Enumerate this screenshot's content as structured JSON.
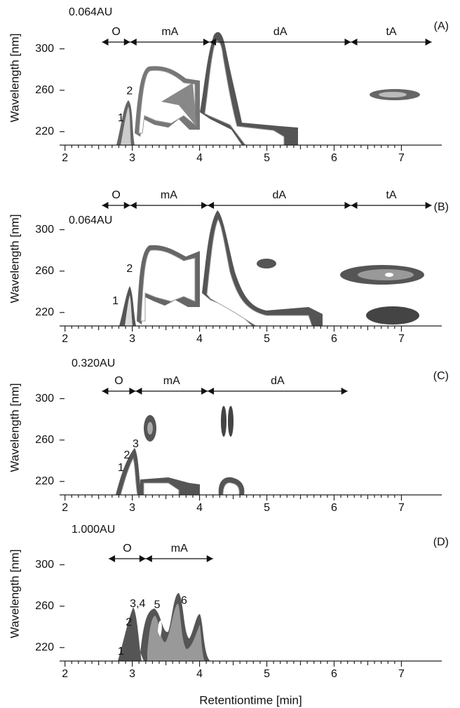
{
  "chart_data": [
    {
      "type": "contour",
      "panel_label": "(A)",
      "annotation": "0.064AU",
      "y_label": "Wavelength [nm]",
      "xlim": [
        1.92,
        7.6
      ],
      "xticks": [
        2,
        3,
        4,
        5,
        6,
        7
      ],
      "ylim": [
        207,
        337
      ],
      "yticks": [
        220,
        260,
        300
      ],
      "regions": [
        {
          "label": "O",
          "start": 2.55,
          "end": 2.97
        },
        {
          "label": "mA",
          "start": 2.97,
          "end": 4.15
        },
        {
          "label": "dA",
          "start": 4.15,
          "end": 6.25
        },
        {
          "label": "tA",
          "start": 6.25,
          "end": 7.45
        }
      ],
      "peaks": [
        {
          "label": "1",
          "x": 2.83,
          "y": 233
        },
        {
          "label": "2",
          "x": 2.96,
          "y": 259
        }
      ]
    },
    {
      "type": "contour",
      "panel_label": "(B)",
      "annotation": "0.064AU",
      "y_label": "Wavelength [nm]",
      "xlim": [
        1.92,
        7.6
      ],
      "xticks": [
        2,
        3,
        4,
        5,
        6,
        7
      ],
      "ylim": [
        207,
        337
      ],
      "yticks": [
        220,
        260,
        300
      ],
      "regions": [
        {
          "label": "O",
          "start": 2.55,
          "end": 2.97
        },
        {
          "label": "mA",
          "start": 2.97,
          "end": 4.12
        },
        {
          "label": "dA",
          "start": 4.12,
          "end": 6.25
        },
        {
          "label": "tA",
          "start": 6.25,
          "end": 7.45
        }
      ],
      "peaks": [
        {
          "label": "1",
          "x": 2.75,
          "y": 231
        },
        {
          "label": "2",
          "x": 2.96,
          "y": 262
        }
      ]
    },
    {
      "type": "contour",
      "panel_label": "(C)",
      "annotation": "0.320AU",
      "y_label": "Wavelength [nm]",
      "xlim": [
        1.92,
        7.6
      ],
      "xticks": [
        2,
        3,
        4,
        5,
        6,
        7
      ],
      "ylim": [
        207,
        337
      ],
      "yticks": [
        220,
        260,
        300
      ],
      "regions": [
        {
          "label": "O",
          "start": 2.55,
          "end": 3.05
        },
        {
          "label": "mA",
          "start": 3.05,
          "end": 4.12
        },
        {
          "label": "dA",
          "start": 4.12,
          "end": 6.2
        }
      ],
      "peaks": [
        {
          "label": "1",
          "x": 2.83,
          "y": 233
        },
        {
          "label": "2",
          "x": 2.92,
          "y": 245
        },
        {
          "label": "3",
          "x": 3.05,
          "y": 256
        }
      ]
    },
    {
      "type": "contour",
      "panel_label": "(D)",
      "annotation": "1.000AU",
      "y_label": "Wavelength [nm]",
      "x_label": "Retentiontime [min]",
      "xlim": [
        1.92,
        7.6
      ],
      "xticks": [
        2,
        3,
        4,
        5,
        6,
        7
      ],
      "ylim": [
        207,
        337
      ],
      "yticks": [
        220,
        260,
        300
      ],
      "regions": [
        {
          "label": "O",
          "start": 2.65,
          "end": 3.2
        },
        {
          "label": "mA",
          "start": 3.2,
          "end": 4.2
        }
      ],
      "peaks": [
        {
          "label": "1",
          "x": 2.83,
          "y": 216
        },
        {
          "label": "2",
          "x": 2.95,
          "y": 244
        },
        {
          "label": "3,4",
          "x": 3.08,
          "y": 262
        },
        {
          "label": "5",
          "x": 3.37,
          "y": 261
        },
        {
          "label": "6",
          "x": 3.77,
          "y": 265
        }
      ]
    }
  ]
}
